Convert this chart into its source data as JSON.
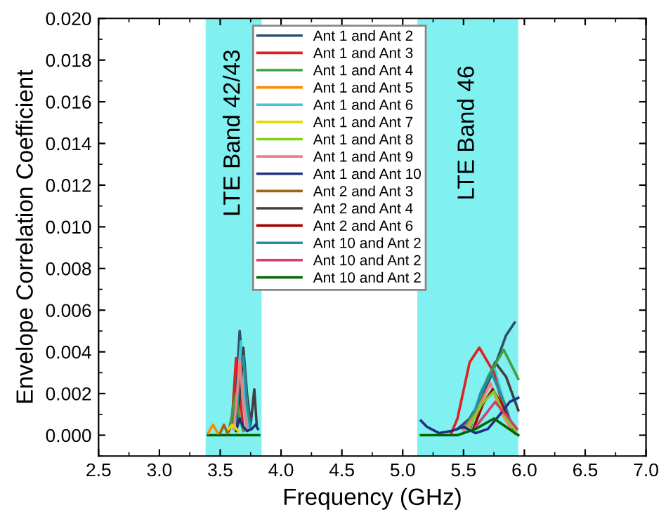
{
  "chart_data": {
    "type": "line",
    "xlabel": "Frequency (GHz)",
    "ylabel": "Envelope Correlation Coefficient",
    "series": [
      {
        "name": "Ant 1 and Ant 2",
        "color": "#2f4f6f",
        "x": [
          3.6,
          3.63,
          3.66,
          3.69,
          3.72,
          4.5,
          5.45,
          5.55,
          5.65,
          5.75,
          5.85,
          5.92
        ],
        "values": [
          0.0005,
          0.002,
          0.005,
          0.003,
          0.0005,
          null,
          0.0003,
          0.0008,
          0.0018,
          0.0032,
          0.0048,
          0.0054
        ]
      },
      {
        "name": "Ant 1 and Ant 3",
        "color": "#e02020",
        "x": [
          3.57,
          3.6,
          3.63,
          3.66,
          3.69,
          4.5,
          5.4,
          5.45,
          5.55,
          5.63,
          5.75,
          5.85,
          5.92
        ],
        "values": [
          0.0002,
          0.001,
          0.0037,
          0.002,
          0.0003,
          null,
          0.0001,
          0.0008,
          0.0035,
          0.0042,
          0.003,
          0.0008,
          0.0001
        ]
      },
      {
        "name": "Ant 1 and Ant 4",
        "color": "#40a040",
        "x": [
          3.58,
          3.61,
          3.63,
          3.66,
          3.69,
          4.5,
          5.5,
          5.6,
          5.7,
          5.83,
          5.95
        ],
        "values": [
          0.0003,
          0.0015,
          0.002,
          0.0008,
          0.0002,
          null,
          0.0003,
          0.0012,
          0.0028,
          0.0041,
          0.0027
        ]
      },
      {
        "name": "Ant 1 and Ant 5",
        "color": "#ff8c00",
        "x": [
          3.4,
          3.44,
          3.48
        ],
        "values": [
          0.0001,
          0.0005,
          0.0001
        ]
      },
      {
        "name": "Ant 1 and Ant 6",
        "color": "#40c8d8",
        "x": [
          3.62,
          3.64,
          3.67,
          3.7,
          3.73,
          4.5,
          5.55,
          5.65,
          5.75,
          5.85,
          5.92
        ],
        "values": [
          0.0006,
          0.002,
          0.0045,
          0.002,
          0.0003,
          null,
          0.0005,
          0.0022,
          0.0033,
          0.0012,
          0.0002
        ]
      },
      {
        "name": "Ant 1 and Ant 7",
        "color": "#e6d800",
        "x": [
          3.55,
          3.6,
          3.65
        ],
        "values": [
          0.0002,
          0.0005,
          0.0002
        ]
      },
      {
        "name": "Ant 1 and Ant 8",
        "color": "#80d020",
        "x": [
          5.55,
          5.65,
          5.75,
          5.85,
          5.93
        ],
        "values": [
          0.0004,
          0.0015,
          0.0021,
          0.0008,
          0.0002
        ]
      },
      {
        "name": "Ant 1 and Ant 9",
        "color": "#f08080",
        "x": [
          3.61,
          3.64,
          3.66,
          3.69,
          3.72,
          4.5,
          5.5,
          5.6,
          5.72,
          5.82,
          5.9
        ],
        "values": [
          0.0003,
          0.002,
          0.0036,
          0.0015,
          0.0003,
          null,
          0.0002,
          0.001,
          0.0025,
          0.001,
          0.0002
        ]
      },
      {
        "name": "Ant 1 and Ant 10",
        "color": "#203080",
        "x": [
          3.63,
          3.66,
          3.69,
          3.72,
          3.76,
          3.79,
          3.81,
          4.5,
          5.15,
          5.2,
          5.3,
          5.4,
          5.5,
          5.6,
          5.7,
          5.8,
          5.88,
          5.95
        ],
        "values": [
          0.0002,
          0.0008,
          0.0004,
          0.0002,
          0.0003,
          0.0005,
          0.0003,
          null,
          0.0007,
          0.0004,
          0.0001,
          0.0002,
          0.0004,
          0.0001,
          0.0003,
          0.001,
          0.0016,
          0.0018
        ]
      },
      {
        "name": "Ant 2 and Ant 3",
        "color": "#9a6a10",
        "x": [
          3.5,
          3.53,
          3.56
        ],
        "values": [
          0.0001,
          0.0005,
          0.0001
        ]
      },
      {
        "name": "Ant 2 and Ant 4",
        "color": "#404040",
        "x": [
          3.64,
          3.67,
          3.69,
          3.72,
          3.75,
          3.78,
          3.8,
          4.5,
          5.5,
          5.6,
          5.7,
          5.76,
          5.85,
          5.95
        ],
        "values": [
          0.0005,
          0.0025,
          0.0042,
          0.002,
          0.0005,
          0.0022,
          0.0005,
          null,
          0.0003,
          0.0012,
          0.0027,
          0.0035,
          0.0028,
          0.0012
        ]
      },
      {
        "name": "Ant 2 and Ant 6",
        "color": "#a00000",
        "x": [
          5.58,
          5.66,
          5.74,
          5.84,
          5.92
        ],
        "values": [
          0.0003,
          0.0015,
          0.0022,
          0.0012,
          0.0002
        ]
      },
      {
        "name": "Ant 10 and Ant 2",
        "color": "#2090a0",
        "x": [
          3.63,
          3.66,
          3.69,
          3.72,
          3.75,
          4.5,
          5.56,
          5.64,
          5.73,
          5.84,
          5.91
        ],
        "values": [
          0.0008,
          0.003,
          0.0038,
          0.0015,
          0.0003,
          null,
          0.0004,
          0.002,
          0.003,
          0.0015,
          0.0002
        ]
      },
      {
        "name": "Ant 10 and Ant 2",
        "color": "#d04070",
        "x": [
          5.6,
          5.68,
          5.76,
          5.86,
          5.94
        ],
        "values": [
          0.0004,
          0.001,
          0.0016,
          0.0009,
          0.0003
        ]
      },
      {
        "name": "Ant 10 and Ant 2",
        "color": "#006400",
        "x": [
          3.4,
          3.5,
          3.6,
          3.7,
          3.82,
          4.5,
          5.15,
          5.3,
          5.45,
          5.6,
          5.75,
          5.85,
          5.95
        ],
        "values": [
          0,
          0,
          0,
          0,
          0,
          null,
          0,
          0,
          0,
          0.0003,
          0.0008,
          0.0004,
          0
        ]
      }
    ],
    "bands": [
      {
        "axis": "x",
        "from": 3.38,
        "to": 3.84,
        "label": "LTE Band 42/43",
        "color": "#80f0f0"
      },
      {
        "axis": "x",
        "from": 5.12,
        "to": 5.95,
        "label": "LTE Band 46",
        "color": "#80f0f0"
      }
    ],
    "xlim": [
      2.5,
      7.0
    ],
    "xticks": [
      2.5,
      {
        "value": 3.0,
        "label": "3.0"
      },
      3.5,
      {
        "value": 4.0,
        "label": "4.0"
      },
      4.5,
      {
        "value": 5.0,
        "label": "5.0"
      },
      5.5,
      {
        "value": 6.0,
        "label": "6.0"
      },
      6.5,
      {
        "value": 7.0,
        "label": "7.0"
      }
    ],
    "ylim": [
      -0.001,
      0.02
    ],
    "yticks": [
      {
        "value": 0,
        "label": "0.000"
      },
      {
        "value": 0.002,
        "label": "0.002"
      },
      {
        "value": 0.004,
        "label": "0.004"
      },
      {
        "value": 0.006,
        "label": "0.006"
      },
      {
        "value": 0.008,
        "label": "0.008"
      },
      {
        "value": 0.01,
        "label": "0.010"
      },
      {
        "value": 0.012,
        "label": "0.012"
      },
      {
        "value": 0.014,
        "label": "0.014"
      },
      {
        "value": 0.016,
        "label": "0.016"
      },
      {
        "value": 0.018,
        "label": "0.018"
      },
      {
        "value": 0.02,
        "label": "0.020"
      }
    ],
    "grid": false,
    "legend": "top",
    "marker": "none",
    "line_style": "solid"
  }
}
